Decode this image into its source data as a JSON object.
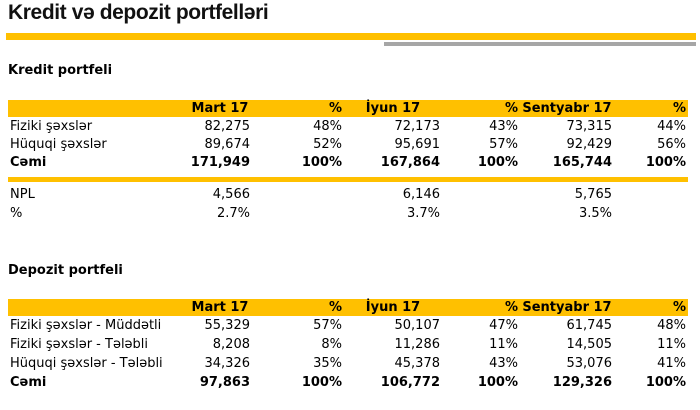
{
  "page": {
    "title": "Kredit və depozit portfelləri"
  },
  "colors": {
    "accent_yellow": "#FFC000",
    "bar_gray": "#A6A6A6"
  },
  "credit": {
    "section_title": "Kredit portfeli",
    "columns": [
      "",
      "Mart 17",
      "%",
      "İyun 17",
      "%",
      "Sentyabr 17",
      "%"
    ],
    "rows": [
      {
        "label": "Fiziki şəxslər",
        "cells": [
          "82,275",
          "48%",
          "72,173",
          "43%",
          "73,315",
          "44%"
        ]
      },
      {
        "label": "Hüquqi şəxslər",
        "cells": [
          "89,674",
          "52%",
          "95,691",
          "57%",
          "92,429",
          "56%"
        ]
      },
      {
        "label": "Cəmi",
        "cells": [
          "171,949",
          "100%",
          "167,864",
          "100%",
          "165,744",
          "100%"
        ]
      }
    ],
    "npl_rows": [
      {
        "label": "NPL",
        "cells": [
          "4,566",
          "",
          "6,146",
          "",
          "5,765",
          ""
        ]
      },
      {
        "label": "%",
        "cells": [
          "2.7%",
          "",
          "3.7%",
          "",
          "3.5%",
          ""
        ]
      }
    ]
  },
  "deposit": {
    "section_title": "Depozit portfeli",
    "columns": [
      "",
      "Mart 17",
      "%",
      "İyun 17",
      "%",
      "Sentyabr 17",
      "%"
    ],
    "rows": [
      {
        "label": "Fiziki şəxslər - Müddətli",
        "cells": [
          "55,329",
          "57%",
          "50,107",
          "47%",
          "61,745",
          "48%"
        ]
      },
      {
        "label": "Fiziki şəxslər - Tələbli",
        "cells": [
          "8,208",
          "8%",
          "11,286",
          "11%",
          "14,505",
          "11%"
        ]
      },
      {
        "label": "Hüquqi şəxslər - Tələbli",
        "cells": [
          "34,326",
          "35%",
          "45,378",
          "43%",
          "53,076",
          "41%"
        ]
      },
      {
        "label": "Cəmi",
        "cells": [
          "97,863",
          "100%",
          "106,772",
          "100%",
          "129,326",
          "100%"
        ]
      }
    ]
  }
}
